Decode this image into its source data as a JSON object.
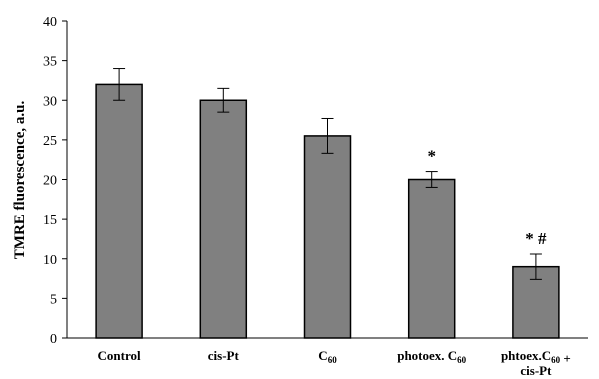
{
  "chart_data": {
    "type": "bar",
    "title": "",
    "xlabel": "",
    "ylabel": "TMRE fluorescence, a.u.",
    "ylim": [
      0,
      40
    ],
    "yticks": [
      0,
      5,
      10,
      15,
      20,
      25,
      30,
      35,
      40
    ],
    "grid": false,
    "legend": "none",
    "bar_color": "#808080",
    "categories": [
      {
        "label": "Control",
        "segments": [
          {
            "text": "Control",
            "sub": false
          }
        ]
      },
      {
        "label": "cis-Pt",
        "segments": [
          {
            "text": "cis-Pt",
            "sub": false
          }
        ]
      },
      {
        "label": "C60",
        "segments": [
          {
            "text": "C",
            "sub": false
          },
          {
            "text": "60",
            "sub": true
          }
        ]
      },
      {
        "label": "photoex. C60",
        "segments": [
          {
            "text": "photoex. C",
            "sub": false
          },
          {
            "text": "60",
            "sub": true
          }
        ]
      },
      {
        "label": "phtoex.C60 + cis-Pt",
        "lines": [
          [
            {
              "text": "phtoex.C",
              "sub": false
            },
            {
              "text": "60",
              "sub": true
            },
            {
              "text": " +",
              "sub": false
            }
          ],
          [
            {
              "text": "cis-Pt",
              "sub": false
            }
          ]
        ]
      }
    ],
    "values": [
      32,
      30,
      25.5,
      20,
      9
    ],
    "errors": [
      2.0,
      1.5,
      2.2,
      1.0,
      1.6
    ],
    "annotations": [
      "",
      "",
      "",
      "*",
      "* #"
    ]
  }
}
